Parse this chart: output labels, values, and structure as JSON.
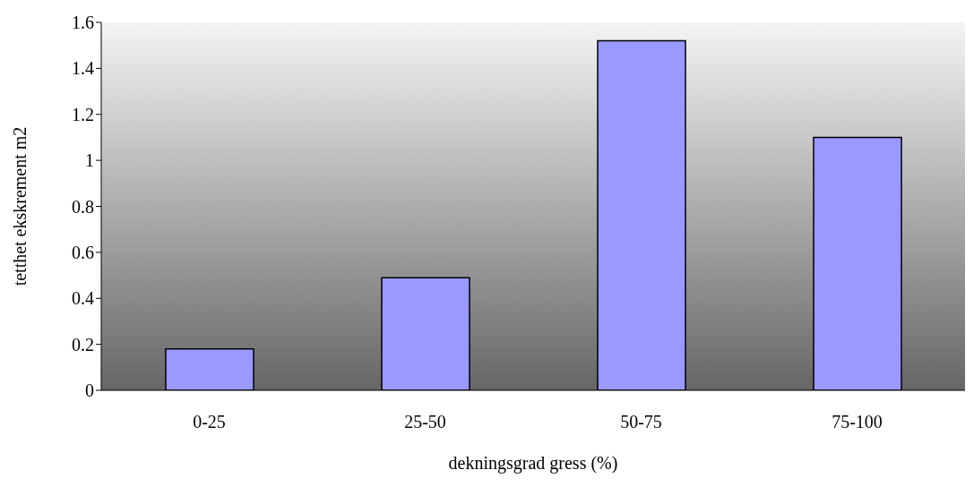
{
  "chart_data": {
    "type": "bar",
    "xlabel": "dekningsgrad gress (%)",
    "ylabel": "tetthet ekskrement m2",
    "categories": [
      "0-25",
      "25-50",
      "50-75",
      "75-100"
    ],
    "values": [
      0.18,
      0.49,
      1.52,
      1.1
    ],
    "color": "#9999ff",
    "ylim": [
      0,
      1.6
    ],
    "yticks": [
      0,
      0.2,
      0.4,
      0.6,
      0.8,
      1,
      1.2,
      1.4,
      1.6
    ],
    "grid": false,
    "legend": false
  }
}
